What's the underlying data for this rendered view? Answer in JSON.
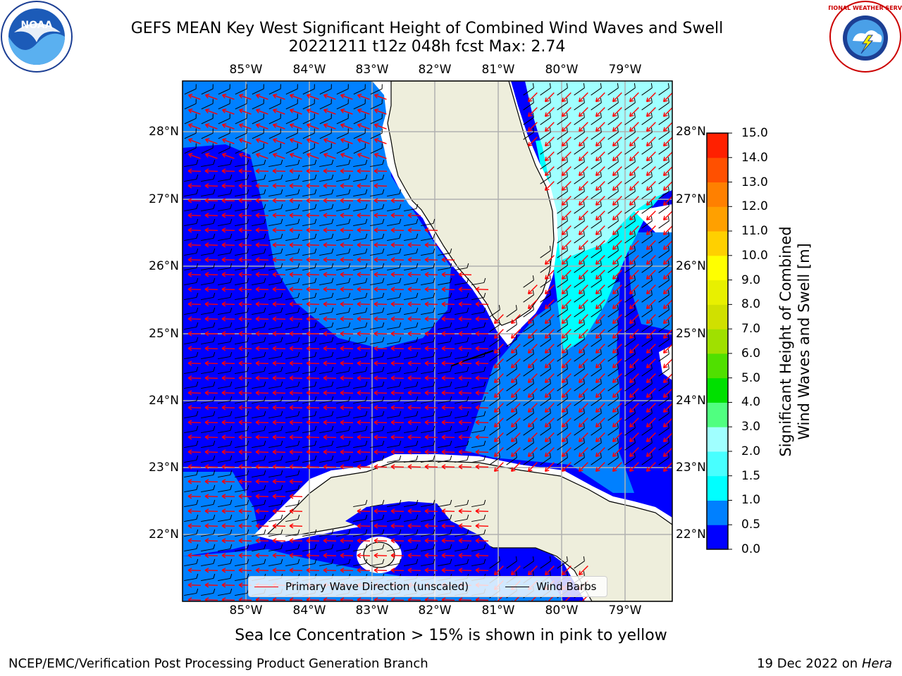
{
  "header": {
    "title_line1": "GEFS MEAN Key West Significant Height of Combined Wind Waves and Swell",
    "title_line2": "20221211 t12z 048h fcst   Max: 2.74"
  },
  "logos": {
    "left": {
      "name": "noaa-logo",
      "text": "NOAA"
    },
    "right": {
      "name": "nws-logo",
      "text": "NATIONAL WEATHER SERVICE"
    }
  },
  "map": {
    "lon_ticks": [
      "85°W",
      "84°W",
      "83°W",
      "82°W",
      "81°W",
      "80°W",
      "79°W"
    ],
    "lat_ticks": [
      "28°N",
      "27°N",
      "26°N",
      "25°N",
      "24°N",
      "23°N",
      "22°N"
    ],
    "colors": {
      "land": "#eeeedc",
      "level_0": "#0000ff",
      "level_0_5": "#0080ff",
      "level_1_0": "#00ffff",
      "level_2_0": "#a0ffff",
      "wave_arrows": "#ff0000",
      "wind_barbs": "#000000",
      "grid": "#b0b0b0"
    }
  },
  "colorbar": {
    "label_line1": "Significant Height of Combined",
    "label_line2": "Wind Waves and Swell [m]",
    "ticks": [
      "15.0",
      "14.0",
      "13.0",
      "12.0",
      "11.0",
      "10.0",
      "9.0",
      "8.0",
      "7.0",
      "6.0",
      "5.0",
      "4.0",
      "3.0",
      "2.0",
      "1.5",
      "1.0",
      "0.5",
      "0.0"
    ],
    "colors": [
      "#0000ff",
      "#0080ff",
      "#00ffff",
      "#48ffff",
      "#a0ffff",
      "#50ff80",
      "#00e000",
      "#50e000",
      "#a0e000",
      "#d0e000",
      "#e8f000",
      "#ffff00",
      "#ffd000",
      "#ffa000",
      "#ff8000",
      "#ff5000",
      "#ff2000"
    ]
  },
  "legend": {
    "wave_label": "Primary Wave Direction (unscaled)",
    "wind_label": "Wind Barbs"
  },
  "footer": {
    "ice_note": "Sea Ice Concentration > 15% is shown in pink to yellow",
    "left": "NCEP/EMC/Verification Post Processing Product Generation Branch",
    "right_date": "19 Dec 2022 on",
    "right_host": "Hera"
  }
}
